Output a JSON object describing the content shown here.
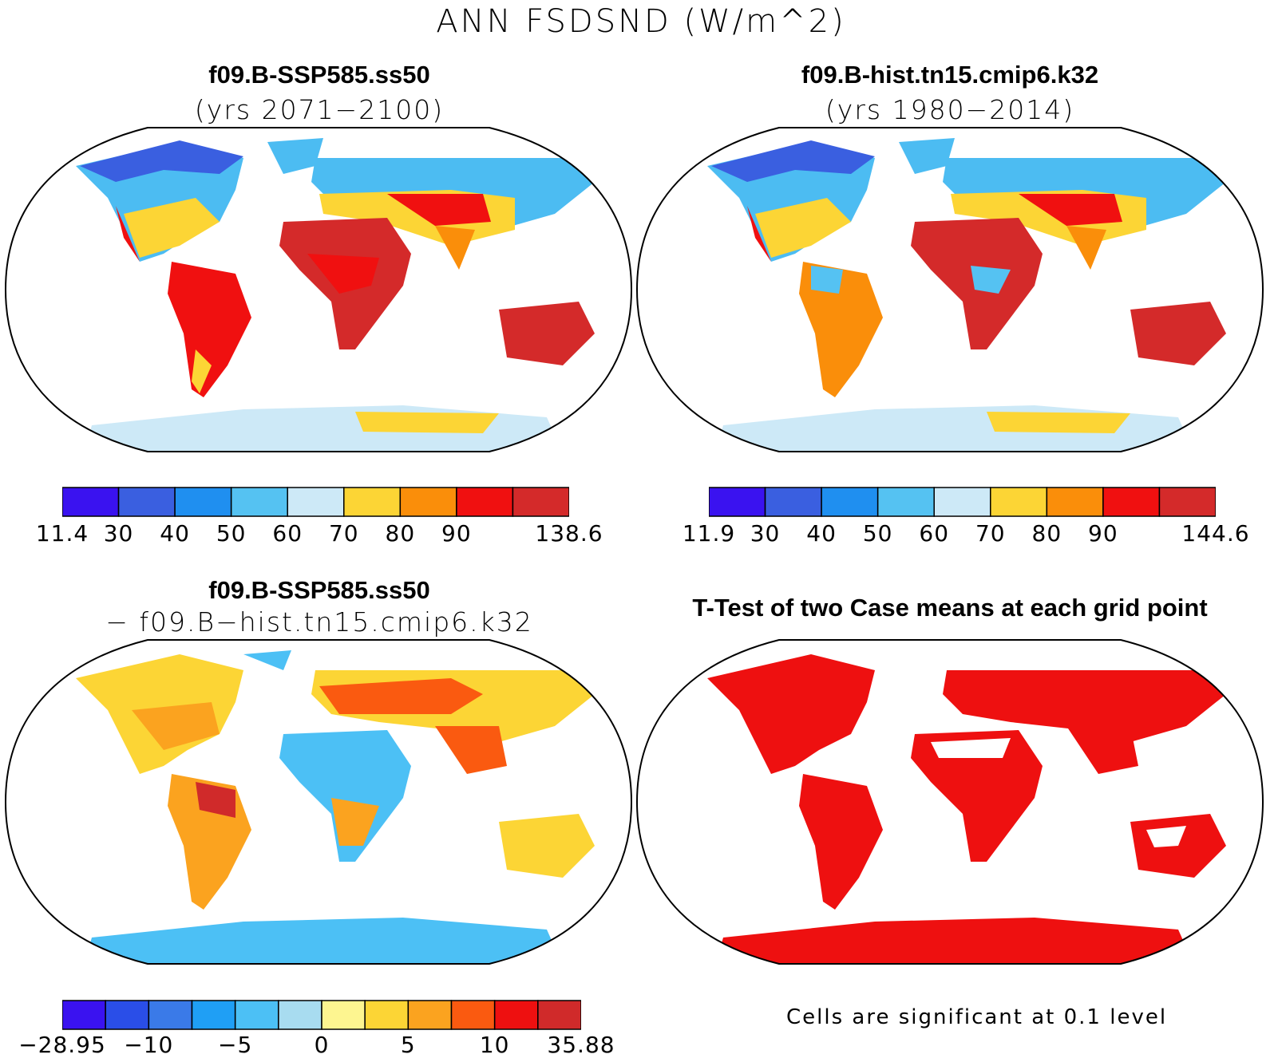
{
  "title": "ANN FSDSND (W/m^2)",
  "panels": [
    {
      "title": "f09.B-SSP585.ss50",
      "subtitle": "(yrs 2071−2100)",
      "colorbar": {
        "colors": [
          "#3a12f0",
          "#3a5fe0",
          "#1f8ff0",
          "#55c2f2",
          "#cde9f7",
          "#fcd535",
          "#fa8e0a",
          "#f01010",
          "#d42a2a"
        ],
        "labels": [
          "11.4",
          "30",
          "40",
          "50",
          "60",
          "70",
          "80",
          "90",
          "138.6"
        ]
      }
    },
    {
      "title": "f09.B-hist.tn15.cmip6.k32",
      "subtitle": "(yrs 1980−2014)",
      "colorbar": {
        "colors": [
          "#3a12f0",
          "#3a5fe0",
          "#1f8ff0",
          "#55c2f2",
          "#cde9f7",
          "#fcd535",
          "#fa8e0a",
          "#f01010",
          "#d42a2a"
        ],
        "labels": [
          "11.9",
          "30",
          "40",
          "50",
          "60",
          "70",
          "80",
          "90",
          "144.6"
        ]
      }
    },
    {
      "title": "f09.B-SSP585.ss50",
      "subtitle": "− f09.B−hist.tn15.cmip6.k32",
      "colorbar": {
        "colors": [
          "#3a12f0",
          "#2a4ee8",
          "#3a7ae8",
          "#1f9ff5",
          "#4cc0f5",
          "#a8dcf0",
          "#fdf590",
          "#fcd535",
          "#fba31f",
          "#fa5a10",
          "#ee1010",
          "#d02a2a"
        ],
        "labels": [
          "−28.95",
          "−10",
          "−5",
          "0",
          "5",
          "10",
          "35.88"
        ]
      }
    },
    {
      "title": "T-Test of two Case means at each grid point",
      "note": "Cells are significant at 0.1 level"
    }
  ]
}
